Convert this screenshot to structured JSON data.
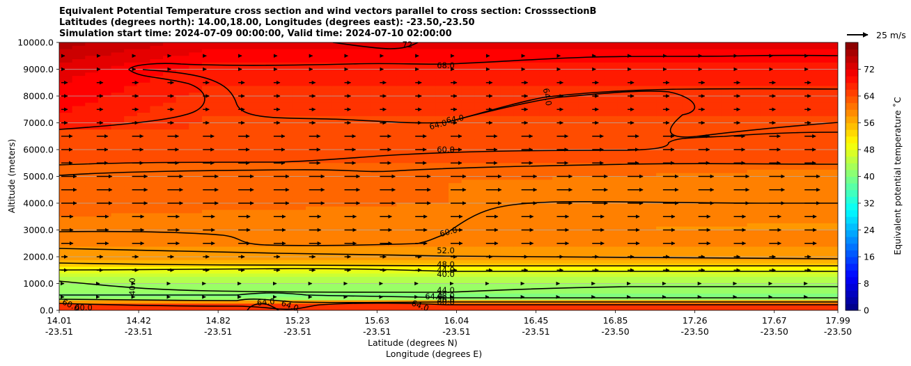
{
  "chart_data": {
    "type": "heatmap",
    "title_lines": [
      "Equivalent Potential Temperature cross section and wind vectors parallel to cross section: CrosssectionB",
      "Latitudes (degrees north): 14.00,18.00, Longitudes (degrees east): -23.50,-23.50",
      "Simulation start time: 2024-07-09 00:00:00, Valid time: 2024-07-10 02:00:00"
    ],
    "ylabel": "Altitude (meters)",
    "xlabel_1": "Latitude (degrees N)",
    "xlabel_2": "Longitude (degrees E)",
    "ylim": [
      0,
      10000
    ],
    "yticks": [
      "0.0",
      "1000.0",
      "2000.0",
      "3000.0",
      "4000.0",
      "5000.0",
      "6000.0",
      "7000.0",
      "8000.0",
      "9000.0",
      "10000.0"
    ],
    "xticks_lat": [
      "14.01",
      "14.42",
      "14.82",
      "15.23",
      "15.63",
      "16.04",
      "16.45",
      "16.85",
      "17.26",
      "17.67",
      "17.99"
    ],
    "xticks_lon": [
      "-23.51",
      "-23.51",
      "-23.51",
      "-23.51",
      "-23.51",
      "-23.51",
      "-23.51",
      "-23.50",
      "-23.50",
      "-23.50",
      "-23.50"
    ],
    "colorbar_label": "Equivalent potential temperature ˚C",
    "colorbar_ticks": [
      "0",
      "8",
      "16",
      "24",
      "32",
      "40",
      "48",
      "56",
      "64",
      "72"
    ],
    "colorbar_range": [
      0,
      80
    ],
    "quiver_key": "25 m/s",
    "contour_labels": [
      "68.0",
      "64.0",
      "64.0",
      "64.0",
      "60.0",
      "60.0",
      "52.0",
      "48.0",
      "44.0",
      "40.0",
      "40.0",
      "44.0",
      "48.0",
      "56.0",
      "60.0",
      "60.0",
      "60.0",
      "64.0",
      "64.0",
      "64.0",
      "64.0",
      "72"
    ],
    "colors": {
      "grid": "#b0b0b0",
      "contour": "#000000"
    }
  }
}
